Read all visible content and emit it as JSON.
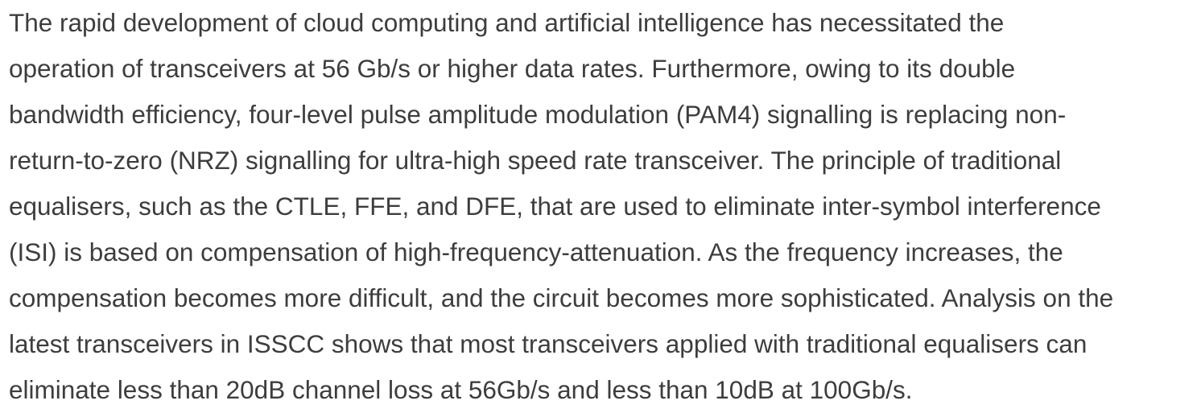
{
  "article": {
    "lines": [
      "The rapid development of cloud computing and artificial intelligence has necessitated the",
      "operation of transceivers at 56 Gb/s or higher data rates. Furthermore, owing to its double",
      "bandwidth efficiency, four-level pulse amplitude modulation (PAM4) signalling is replacing non-",
      "return-to-zero (NRZ) signalling for ultra-high speed rate transceiver. The principle of traditional",
      "equalisers, such as the CTLE, FFE, and DFE, that are used to eliminate inter-symbol interference",
      "(ISI) is based on compensation of high-frequency-attenuation. As the frequency increases, the",
      "compensation becomes more difficult, and the circuit becomes more sophisticated. Analysis on the",
      "latest transceivers in ISSCC shows that most transceivers applied with traditional equalisers can",
      "eliminate less than 20dB channel loss at 56Gb/s and less than 10dB at 100Gb/s."
    ]
  },
  "colors": {
    "text": "#3d3d3d",
    "background": "#ffffff"
  }
}
